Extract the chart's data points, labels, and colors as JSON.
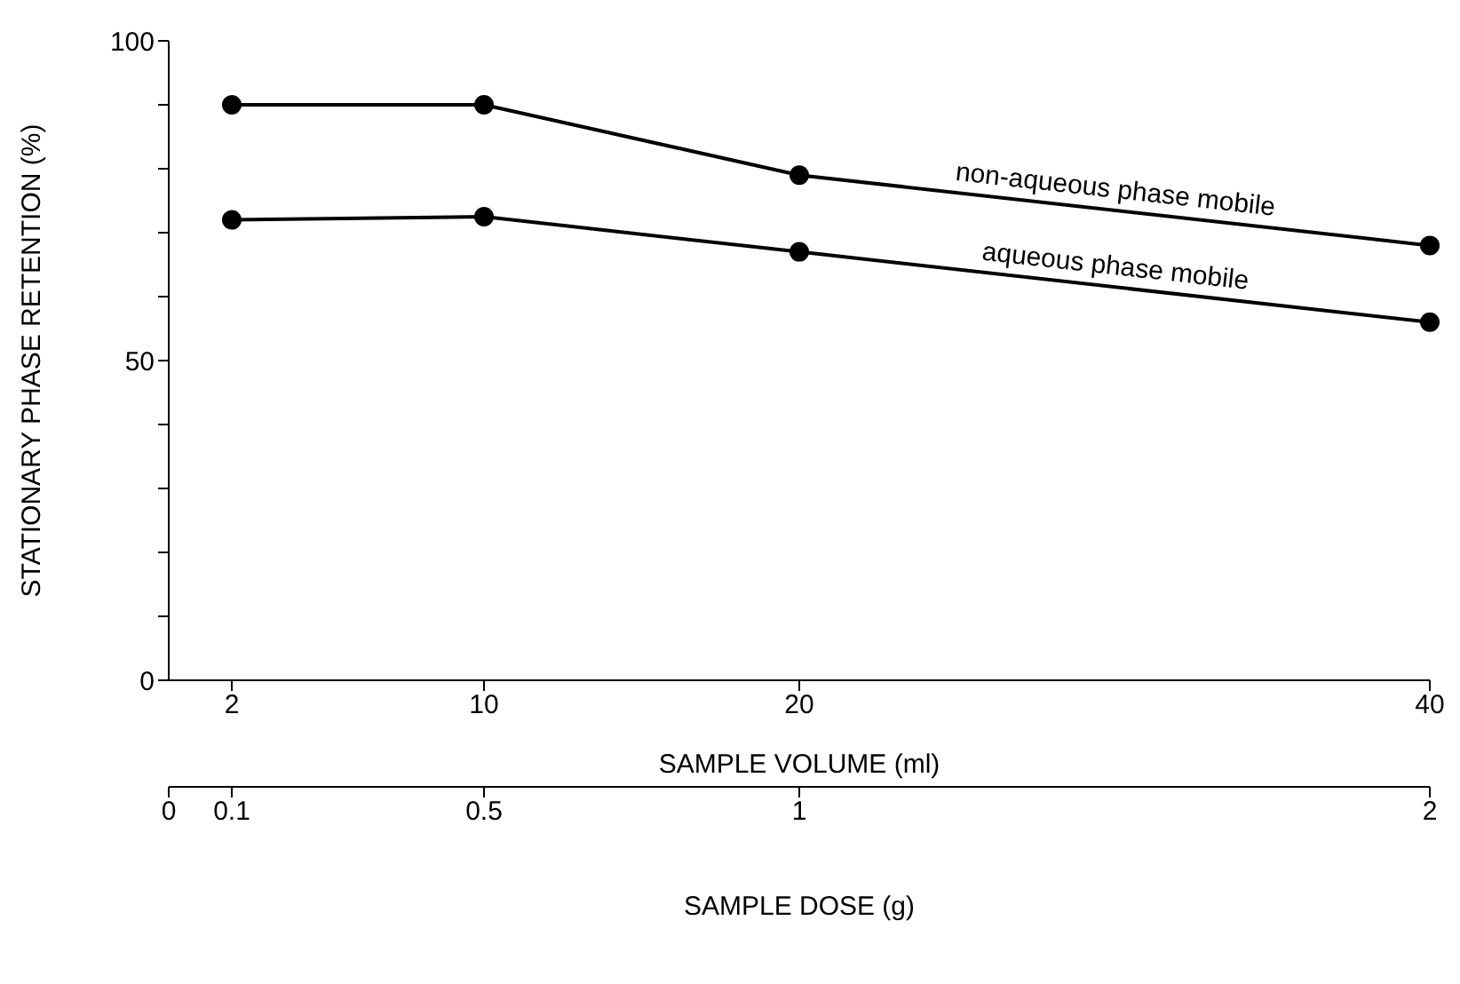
{
  "chart_data": {
    "type": "line",
    "xlabel": "SAMPLE VOLUME (ml)",
    "x2label": "SAMPLE DOSE (g)",
    "ylabel": "STATIONARY PHASE RETENTION (%)",
    "x": [
      2,
      10,
      20,
      40
    ],
    "xlim": [
      0,
      40
    ],
    "xticks": [
      2,
      10,
      20,
      40
    ],
    "x2lim": [
      0,
      2
    ],
    "x2ticks": [
      0,
      0.1,
      0.5,
      1,
      2
    ],
    "ylim": [
      0,
      100
    ],
    "yticks": [
      0,
      {
        "value": 10,
        "label": null
      },
      {
        "value": 20,
        "label": null
      },
      {
        "value": 30,
        "label": null
      },
      {
        "value": 40,
        "label": null
      },
      50,
      {
        "value": 60,
        "label": null
      },
      {
        "value": 70,
        "label": null
      },
      {
        "value": 80,
        "label": null
      },
      {
        "value": 90,
        "label": null
      },
      100
    ],
    "series": [
      {
        "name": "non-aqueous phase mobile",
        "color": "#000000",
        "values": [
          90,
          90,
          79,
          68
        ]
      },
      {
        "name": "aqueous phase mobile",
        "color": "#000000",
        "values": [
          72,
          72.5,
          67,
          56
        ]
      }
    ],
    "marker": "circle",
    "line_style": "solid",
    "grid": false,
    "legend": false
  }
}
